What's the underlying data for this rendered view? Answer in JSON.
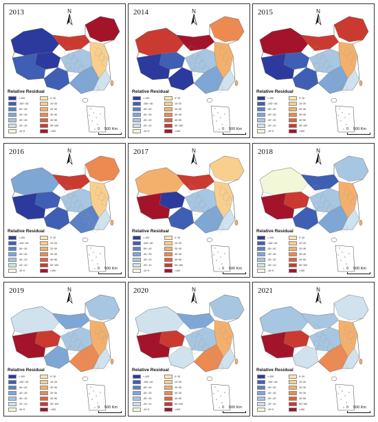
{
  "legend": {
    "title": "Relative Residual",
    "items": [
      {
        "label": "<-100",
        "color": "#2c3a9e"
      },
      {
        "label": "-100~-50",
        "color": "#3f5fb5"
      },
      {
        "label": "-50~-40",
        "color": "#5b82c6"
      },
      {
        "label": "-40~-30",
        "color": "#7ea7d6"
      },
      {
        "label": "-30~-20",
        "color": "#a7c6e2"
      },
      {
        "label": "-20~-10",
        "color": "#cfe2ee"
      },
      {
        "label": "-10~0",
        "color": "#f2f7d8"
      },
      {
        "label": "0~10",
        "color": "#fbe6b0"
      },
      {
        "label": "10~20",
        "color": "#f8cf8d"
      },
      {
        "label": "20~30",
        "color": "#f3b06c"
      },
      {
        "label": "30~40",
        "color": "#ec8a52"
      },
      {
        "label": "40~50",
        "color": "#e0623e"
      },
      {
        "label": "50~100",
        "color": "#cb3a30"
      },
      {
        "label": ">100",
        "color": "#a3142a"
      }
    ]
  },
  "north_label": "N",
  "scale": {
    "zero": "0",
    "label": "500 Km"
  },
  "panels": [
    {
      "year": "2013",
      "fills": {
        "nw": "#2c3a9e",
        "ne": "#a3142a",
        "n": "#cb3a30",
        "tibet": "#3f5fb5",
        "qinghai": "#2c3a9e",
        "sw": "#3f5fb5",
        "center": "#a7c6e2",
        "east": "#f8cf8d",
        "south": "#7ea7d6",
        "se": "#cfe2ee"
      }
    },
    {
      "year": "2014",
      "fills": {
        "nw": "#cb3a30",
        "ne": "#ec8a52",
        "n": "#a3142a",
        "tibet": "#2c3a9e",
        "qinghai": "#3f5fb5",
        "sw": "#2c3a9e",
        "center": "#a7c6e2",
        "east": "#f3b06c",
        "south": "#7ea7d6",
        "se": "#cfe2ee"
      }
    },
    {
      "year": "2015",
      "fills": {
        "nw": "#a3142a",
        "ne": "#cb3a30",
        "n": "#cb3a30",
        "tibet": "#2c3a9e",
        "qinghai": "#3f5fb5",
        "sw": "#3f5fb5",
        "center": "#a7c6e2",
        "east": "#f3b06c",
        "south": "#7ea7d6",
        "se": "#cfe2ee"
      }
    },
    {
      "year": "2016",
      "fills": {
        "nw": "#7ea7d6",
        "ne": "#ec8a52",
        "n": "#cb3a30",
        "tibet": "#2c3a9e",
        "qinghai": "#3f5fb5",
        "sw": "#3f5fb5",
        "center": "#a7c6e2",
        "east": "#f8cf8d",
        "south": "#5b82c6",
        "se": "#cfe2ee"
      }
    },
    {
      "year": "2017",
      "fills": {
        "nw": "#f3b06c",
        "ne": "#f8cf8d",
        "n": "#cb3a30",
        "tibet": "#a3142a",
        "qinghai": "#2c3a9e",
        "sw": "#3f5fb5",
        "center": "#a7c6e2",
        "east": "#f8cf8d",
        "south": "#7ea7d6",
        "se": "#cfe2ee"
      }
    },
    {
      "year": "2018",
      "fills": {
        "nw": "#f2f7d8",
        "ne": "#a7c6e2",
        "n": "#3f5fb5",
        "tibet": "#a3142a",
        "qinghai": "#cb3a30",
        "sw": "#3f5fb5",
        "center": "#a7c6e2",
        "east": "#f3b06c",
        "south": "#7ea7d6",
        "se": "#cfe2ee"
      }
    },
    {
      "year": "2019",
      "fills": {
        "nw": "#cfe2ee",
        "ne": "#a7c6e2",
        "n": "#7ea7d6",
        "tibet": "#a3142a",
        "qinghai": "#cb3a30",
        "sw": "#7ea7d6",
        "center": "#a7c6e2",
        "east": "#f3b06c",
        "south": "#ec8a52",
        "se": "#cfe2ee"
      }
    },
    {
      "year": "2020",
      "fills": {
        "nw": "#cfe2ee",
        "ne": "#a7c6e2",
        "n": "#7ea7d6",
        "tibet": "#a3142a",
        "qinghai": "#cb3a30",
        "sw": "#cfe2ee",
        "center": "#a7c6e2",
        "east": "#f3b06c",
        "south": "#ec8a52",
        "se": "#cfe2ee"
      }
    },
    {
      "year": "2021",
      "fills": {
        "nw": "#a7c6e2",
        "ne": "#cfe2ee",
        "n": "#a7c6e2",
        "tibet": "#a3142a",
        "qinghai": "#cb3a30",
        "sw": "#cfe2ee",
        "center": "#a7c6e2",
        "east": "#f3b06c",
        "south": "#ec8a52",
        "se": "#cfe2ee"
      }
    }
  ]
}
